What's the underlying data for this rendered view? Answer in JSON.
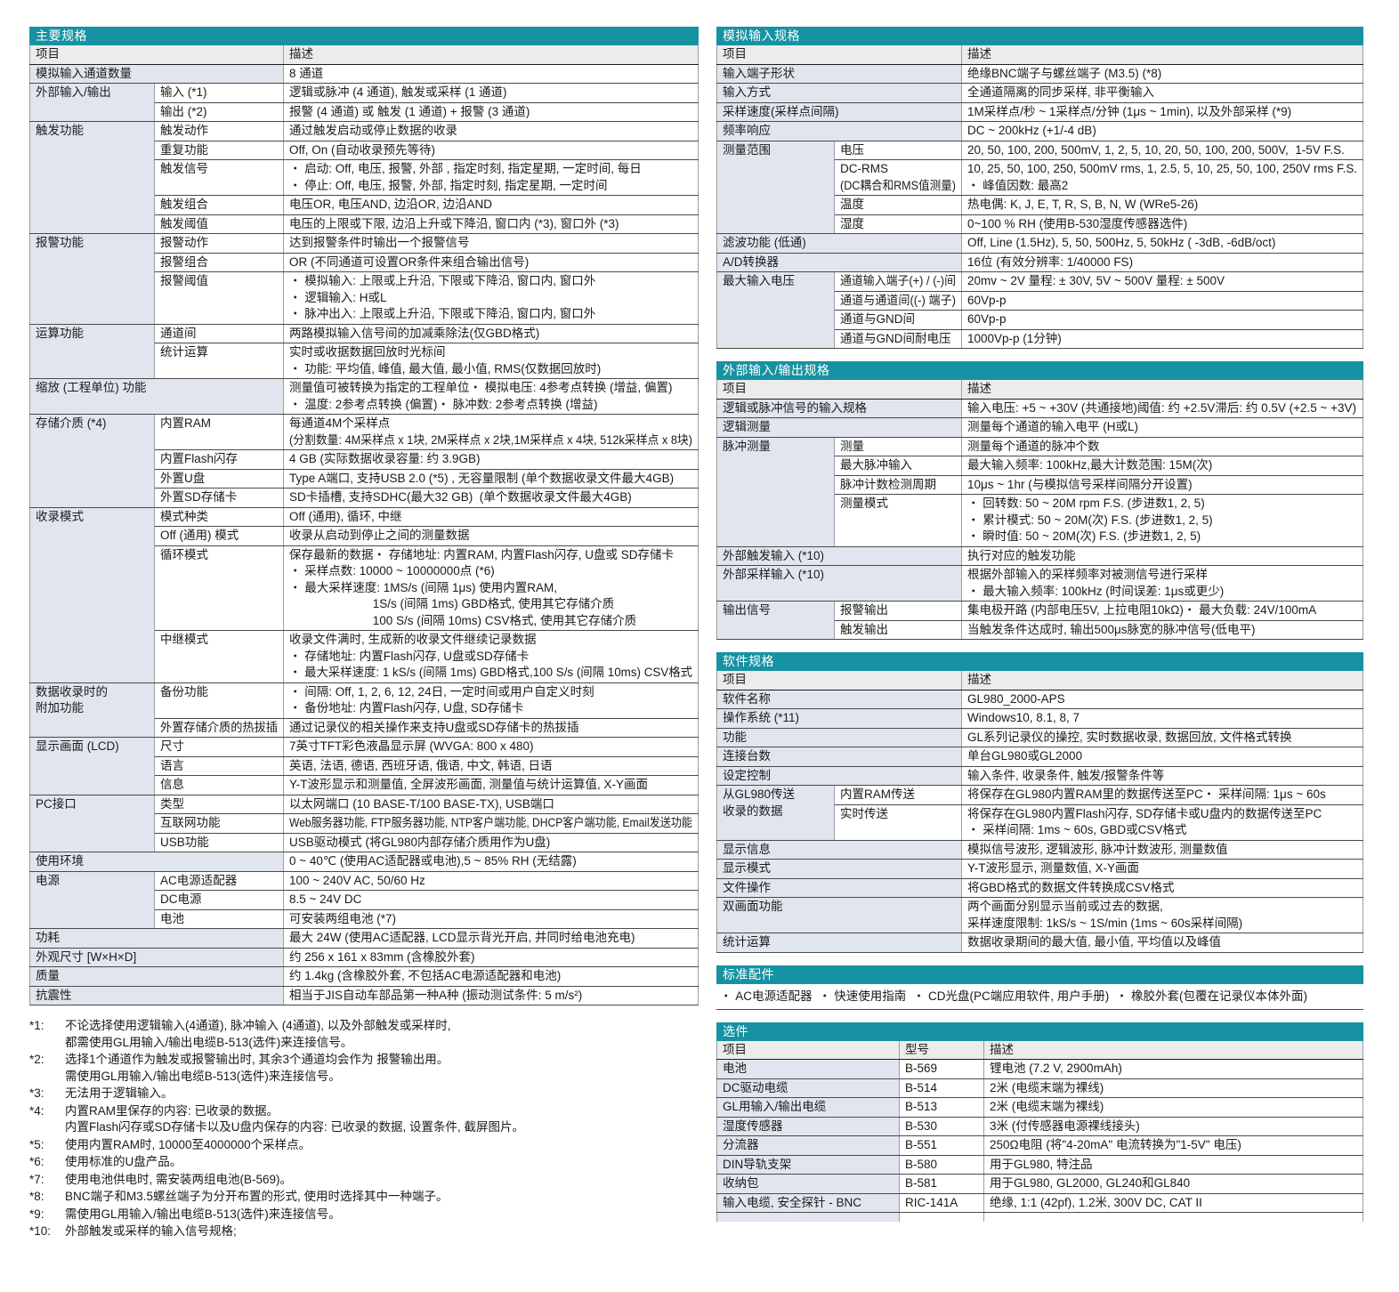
{
  "colors": {
    "header_bar": "#1792a3",
    "header_bar_text": "#ffffff",
    "col_header_bg": "#ececec",
    "item_bg": "#e1e6ee",
    "border_dark": "#4a4a4a",
    "border_light": "#97a0aa"
  },
  "left": {
    "main_table": {
      "name": "main-specs",
      "title": "主要规格",
      "columns": [
        "项目",
        "描述"
      ],
      "widths": [
        140,
        145,
        null
      ],
      "rows": [
        {
          "item": "模拟输入通道数量",
          "desc": "8 通道"
        },
        {
          "item": "外部输入/输出",
          "rowspan": 2,
          "sub": "输入 (*1)",
          "desc": "逻辑或脉冲 (4 通道), 触发或采样 (1 通道)"
        },
        {
          "sub": "输出 (*2)",
          "desc": "报警 (4 通道) 或 触发 (1 通道) + 报警 (3 通道)"
        },
        {
          "item": "触发功能",
          "rowspan": 5,
          "sub": "触发动作",
          "desc": "通过触发启动或停止数据的收录"
        },
        {
          "sub": "重复功能",
          "desc": "Off, On (自动收录预先等待)"
        },
        {
          "sub": "触发信号",
          "desc": [
            "・ 启动: Off, 电压, 报警, 外部 , 指定时刻, 指定星期, 一定时间, 每日",
            "・ 停止: Off, 电压, 报警, 外部, 指定时刻, 指定星期, 一定时间"
          ]
        },
        {
          "sub": "触发组合",
          "desc": "电压OR, 电压AND, 边沿OR, 边沿AND"
        },
        {
          "sub": "触发阈值",
          "desc": "电压的上限或下限, 边沿上升或下降沿, 窗口内 (*3), 窗口外 (*3)"
        },
        {
          "item": "报警功能",
          "rowspan": 3,
          "sub": "报警动作",
          "desc": "达到报警条件时输出一个报警信号"
        },
        {
          "sub": "报警组合",
          "desc": "OR (不同通道可设置OR条件来组合输出信号)"
        },
        {
          "sub": "报警阈值",
          "desc": [
            "・ 模拟输入: 上限或上升沿, 下限或下降沿, 窗口内, 窗口外",
            "・ 逻辑输入: H或L",
            "・ 脉冲出入: 上限或上升沿, 下限或下降沿, 窗口内, 窗口外"
          ]
        },
        {
          "item": "运算功能",
          "rowspan": 2,
          "sub": "通道间",
          "desc": "两路模拟输入信号间的加减乘除法(仅GBD格式)"
        },
        {
          "sub": "统计运算",
          "desc": [
            "实时或收据数据回放时光标间",
            "・ 功能: 平均值, 峰值, 最大值, 最小值, RMS(仅数据回放时)"
          ]
        },
        {
          "item": "缩放 (工程单位) 功能",
          "desc": [
            "测量值可被转换为指定的工程单位",
            "・ 模拟电压: 4参考点转换 (增益, 偏置)",
            "・ 温度: 2参考点转换 (偏置)",
            "・ 脉冲数: 2参考点转换 (增益)"
          ]
        },
        {
          "item": "存储介质 (*4)",
          "rowspan": 4,
          "sub": "内置RAM",
          "desc": [
            "每通道4M个采样点",
            "(分割数量: 4M采样点 x 1块, 2M采样点 x 2块,1M采样点 x 4块, 512k采样点 x 8块)"
          ]
        },
        {
          "sub": "内置Flash闪存",
          "desc": "4 GB (实际数据收录容量: 约 3.9GB)"
        },
        {
          "sub": "外置U盘",
          "desc": "Type A端口, 支持USB 2.0 (*5) , 无容量限制 (单个数据收录文件最大4GB)"
        },
        {
          "sub": "外置SD存储卡",
          "desc": "SD卡插槽, 支持SDHC(最大32 GB)  (单个数据收录文件最大4GB)"
        },
        {
          "item": "收录模式",
          "rowspan": 4,
          "sub": "模式种类",
          "desc": "Off (通用), 循环, 中继"
        },
        {
          "sub": "Off (通用) 模式",
          "desc": "收录从启动到停止之间的测量数据"
        },
        {
          "sub": "循环模式",
          "desc": [
            "保存最新的数据",
            "・ 存储地址: 内置RAM, 内置Flash闪存, U盘或 SD存储卡",
            "・ 采样点数: 10000 ~ 10000000点 (*6)",
            "・ 最大采样速度: 1MS/s (间隔 1μs) 使用内置RAM,",
            "                         1S/s (间隔 1ms) GBD格式, 使用其它存储介质",
            "                         100 S/s (间隔 10ms) CSV格式, 使用其它存储介质"
          ]
        },
        {
          "sub": "中继模式",
          "desc": [
            "收录文件满时, 生成新的收录文件继续记录数据",
            "・ 存储地址: 内置Flash闪存, U盘或SD存储卡",
            "・ 最大采样速度: 1 kS/s (间隔 1ms) GBD格式,100 S/s (间隔 10ms) CSV格式"
          ]
        },
        {
          "item": [
            "数据收录时的",
            "附加功能"
          ],
          "rowspan": 2,
          "sub": "备份功能",
          "desc": [
            "・ 间隔: Off, 1, 2, 6, 12, 24日, 一定时间或用户自定义时刻",
            "・ 备份地址: 内置Flash闪存, U盘, SD存储卡"
          ]
        },
        {
          "sub": "外置存储介质的热拔插",
          "desc": "通过记录仪的相关操作来支持U盘或SD存储卡的热拔插"
        },
        {
          "item": "显示画面 (LCD)",
          "rowspan": 3,
          "sub": "尺寸",
          "desc": "7英寸TFT彩色液晶显示屏 (WVGA: 800 x 480)"
        },
        {
          "sub": "语言",
          "desc": "英语, 法语, 德语, 西班牙语, 俄语, 中文, 韩语, 日语"
        },
        {
          "sub": "信息",
          "desc": "Y-T波形显示和测量值, 全屏波形画面, 测量值与统计运算值, X-Y画面"
        },
        {
          "item": "PC接口",
          "rowspan": 3,
          "sub": "类型",
          "desc": "以太网端口 (10 BASE-T/100 BASE-TX), USB端口"
        },
        {
          "sub": "互联网功能",
          "desc": "Web服务器功能, FTP服务器功能, NTP客户端功能, DHCP客户端功能, Email发送功能"
        },
        {
          "sub": "USB功能",
          "desc": "USB驱动模式 (将GL980内部存储介质用作为U盘)"
        },
        {
          "item": "使用环境",
          "desc": "0 ~ 40℃ (使用AC适配器或电池),5 ~ 85% RH (无结露)"
        },
        {
          "item": "电源",
          "rowspan": 3,
          "sub": "AC电源适配器",
          "desc": "100 ~ 240V AC, 50/60 Hz"
        },
        {
          "sub": "DC电源",
          "desc": "8.5 ~ 24V DC"
        },
        {
          "sub": "电池",
          "desc": "可安装两组电池 (*7)"
        },
        {
          "item": "功耗",
          "desc": "最大 24W (使用AC适配器, LCD显示背光开启, 并同时给电池充电)"
        },
        {
          "item": "外观尺寸 [W×H×D]",
          "desc": "约 256 x 161 x 83mm (含橡胶外套)"
        },
        {
          "item": "质量",
          "desc": "约 1.4kg (含橡胶外套, 不包括AC电源适配器和电池)"
        },
        {
          "item": "抗震性",
          "desc": "相当于JIS自动车部品第一种A种 (振动测试条件: 5 m/s²)"
        }
      ]
    },
    "footnotes": [
      {
        "label": "*1:",
        "lines": [
          "不论选择使用逻辑输入(4通道), 脉冲输入 (4通道), 以及外部触发或采样时,",
          "都需使用GL用输入/输出电缆B-513(选件)来连接信号。"
        ]
      },
      {
        "label": "*2:",
        "lines": [
          "选择1个通道作为触发或报警输出时, 其余3个通道均会作为 报警输出用。",
          "需使用GL用输入/输出电缆B-513(选件)来连接信号。"
        ]
      },
      {
        "label": "*3:",
        "lines": [
          "无法用于逻辑输入。"
        ]
      },
      {
        "label": "*4:",
        "lines": [
          "内置RAM里保存的内容: 已收录的数据。",
          "内置Flash闪存或SD存储卡以及U盘内保存的内容: 已收录的数据, 设置条件, 截屏图片。"
        ]
      },
      {
        "label": "*5:",
        "lines": [
          "使用内置RAM时, 10000至4000000个采样点。"
        ]
      },
      {
        "label": "*6:",
        "lines": [
          "使用标准的U盘产品。"
        ]
      },
      {
        "label": "*7:",
        "lines": [
          "使用电池供电时, 需安装两组电池(B-569)。"
        ]
      },
      {
        "label": "*8:",
        "lines": [
          "BNC端子和M3.5螺丝端子为分开布置的形式, 使用时选择其中一种端子。"
        ]
      },
      {
        "label": "*9:",
        "lines": [
          "需使用GL用输入/输出电缆B-513(选件)来连接信号。"
        ]
      },
      {
        "label": "*10:",
        "lines": [
          "外部触发或采样的输入信号规格;"
        ]
      }
    ]
  },
  "right": {
    "tables": [
      {
        "name": "analog-input-specs",
        "title": "模拟输入规格",
        "columns": [
          "项目",
          "描述"
        ],
        "widths": [
          132,
          143,
          null
        ],
        "rows": [
          {
            "item": "输入端子形状",
            "desc": "绝缘BNC端子与螺丝端子 (M3.5) (*8)"
          },
          {
            "item": "输入方式",
            "desc": "全通道隔离的同步采样, 非平衡输入"
          },
          {
            "item": "采样速度(采样点间隔)",
            "desc": "1M采样点/秒 ~ 1采样点/分钟 (1μs ~ 1min), 以及外部采样 (*9)"
          },
          {
            "item": "频率响应",
            "desc": "DC ~ 200kHz (+1/-4 dB)"
          },
          {
            "item": "测量范围",
            "rowspan": 4,
            "sub": "电压",
            "desc": "20, 50, 100, 200, 500mV, 1, 2, 5, 10, 20, 50, 100, 200, 500V,  1-5V F.S."
          },
          {
            "sub": [
              "DC-RMS",
              "(DC耦合和RMS值测量)"
            ],
            "desc": [
              "10, 25, 50, 100, 250, 500mV rms, 1, 2.5, 5, 10, 25, 50, 100, 250V rms F.S.",
              "・ 峰值因数: 最高2"
            ]
          },
          {
            "sub": "温度",
            "desc": "热电偶: K, J, E, T, R, S, B, N, W (WRe5-26)"
          },
          {
            "sub": "湿度",
            "desc": "0~100 % RH (使用B-530湿度传感器选件)"
          },
          {
            "item": "滤波功能 (低通)",
            "desc": "Off, Line (1.5Hz), 5, 50, 500Hz, 5, 50kHz ( -3dB, -6dB/oct)"
          },
          {
            "item": "A/D转换器",
            "desc": "16位 (有效分辨率: 1/40000 FS)"
          },
          {
            "item": "最大输入电压",
            "rowspan": 4,
            "sub": "通道输入端子(+) / (-)间",
            "desc": "20mv ~ 2V 量程: ± 30V, 5V ~ 500V 量程: ± 500V"
          },
          {
            "sub": "通道与通道间((-) 端子)",
            "desc": "60Vp-p"
          },
          {
            "sub": "通道与GND间",
            "desc": "60Vp-p"
          },
          {
            "sub": "通道与GND间耐电压",
            "desc": "1000Vp-p (1分钟)"
          }
        ]
      },
      {
        "name": "external-io-specs",
        "title": "外部输入/输出规格",
        "columns": [
          "项目",
          "描述"
        ],
        "widths": [
          132,
          143,
          null
        ],
        "rows": [
          {
            "item": "逻辑或脉冲信号的输入规格",
            "desc": [
              "输入电压: +5 ~ +30V (共通接地)",
              "阈值: 约 +2.5V",
              "滞后: 约 0.5V (+2.5 ~ +3V)"
            ]
          },
          {
            "item": "逻辑测量",
            "desc": "测量每个通道的输入电平 (H或L)"
          },
          {
            "item": "脉冲测量",
            "rowspan": 4,
            "sub": "测量",
            "desc": "测量每个通道的脉冲个数"
          },
          {
            "sub": "最大脉冲输入",
            "desc": [
              "最大输入频率: 100kHz,",
              "最大计数范围: 15M(次)"
            ]
          },
          {
            "sub": "脉冲计数检测周期",
            "desc": "10μs ~ 1hr (与模拟信号采样间隔分开设置)"
          },
          {
            "sub": "测量模式",
            "desc": [
              "・ 回转数: 50 ~ 20M rpm F.S. (步进数1, 2, 5)",
              "・ 累计模式: 50 ~ 20M(次) F.S. (步进数1, 2, 5)",
              "・ 瞬时值: 50 ~ 20M(次) F.S. (步进数1, 2, 5)"
            ]
          },
          {
            "item": "外部触发输入 (*10)",
            "desc": "执行对应的触发功能"
          },
          {
            "item": "外部采样输入 (*10)",
            "desc": [
              "根据外部输入的采样频率对被测信号进行采样",
              "・ 最大输入频率: 100kHz (时间误差: 1μs或更少)"
            ]
          },
          {
            "item": "输出信号",
            "rowspan": 2,
            "sub": "报警输出",
            "desc": [
              "集电极开路 (内部电压5V, 上拉电阻10kΩ)",
              "・ 最大负载: 24V/100mA"
            ]
          },
          {
            "sub": "触发输出",
            "desc": "当触发条件达成时, 输出500μs脉宽的脉冲信号(低电平)"
          }
        ]
      },
      {
        "name": "software-specs",
        "title": "软件规格",
        "columns": [
          "项目",
          "描述"
        ],
        "widths": [
          132,
          143,
          null
        ],
        "rows": [
          {
            "item": "软件名称",
            "desc": "GL980_2000-APS"
          },
          {
            "item": "操作系统 (*11)",
            "desc": "Windows10, 8.1, 8, 7"
          },
          {
            "item": "功能",
            "desc": "GL系列记录仪的操控, 实时数据收录, 数据回放, 文件格式转换"
          },
          {
            "item": "连接台数",
            "desc": "单台GL980或GL2000"
          },
          {
            "item": "设定控制",
            "desc": "输入条件, 收录条件, 触发/报警条件等"
          },
          {
            "item": [
              "从GL980传送",
              "收录的数据"
            ],
            "rowspan": 2,
            "sub": "内置RAM传送",
            "desc": [
              "将保存在GL980内置RAM里的数据传送至PC",
              "・ 采样间隔: 1μs ~ 60s"
            ]
          },
          {
            "sub": "实时传送",
            "desc": [
              "将保存在GL980内置Flash闪存, SD存储卡或U盘内的数据传送至PC",
              "・ 采样间隔: 1ms ~ 60s, GBD或CSV格式"
            ]
          },
          {
            "item": "显示信息",
            "desc": "模拟信号波形, 逻辑波形, 脉冲计数波形, 测量数值"
          },
          {
            "item": "显示模式",
            "desc": "Y-T波形显示, 测量数值, X-Y画面"
          },
          {
            "item": "文件操作",
            "desc": "将GBD格式的数据文件转换成CSV格式"
          },
          {
            "item": "双画面功能",
            "desc": [
              "两个画面分别显示当前或过去的数据,",
              "采样速度限制: 1kS/s ~ 1S/min (1ms ~ 60s采样间隔)"
            ]
          },
          {
            "item": "统计运算",
            "desc": "数据收录期间的最大值, 最小值, 平均值以及峰值"
          }
        ]
      }
    ],
    "accessories": {
      "title": "标准配件",
      "line": "・ AC电源适配器  ・ 快速使用指南  ・ CD光盘(PC端应用软件, 用户手册)  ・ 橡胶外套(包覆在记录仪本体外面)"
    },
    "options_table": {
      "name": "options",
      "title": "选件",
      "columns": [
        "项目",
        "型号",
        "描述"
      ],
      "widths": [
        205,
        95,
        null
      ],
      "partial_row": true,
      "rows": [
        {
          "item": "电池",
          "model": "B-569",
          "desc": "锂电池 (7.2 V, 2900mAh)"
        },
        {
          "item": "DC驱动电缆",
          "model": "B-514",
          "desc": "2米 (电缆末端为裸线)"
        },
        {
          "item": "GL用输入/输出电缆",
          "model": "B-513",
          "desc": "2米 (电缆末端为裸线)"
        },
        {
          "item": "湿度传感器",
          "model": "B-530",
          "desc": "3米 (付传感器电源裸线接头)"
        },
        {
          "item": "分流器",
          "model": "B-551",
          "desc": "250Ω电阻 (将\"4-20mA\" 电流转换为\"1-5V\" 电压)"
        },
        {
          "item": "DIN导轨支架",
          "model": "B-580",
          "desc": "用于GL980, 特注品"
        },
        {
          "item": "收纳包",
          "model": "B-581",
          "desc": "用于GL980, GL2000, GL240和GL840"
        },
        {
          "item": "输入电缆, 安全探针 - BNC",
          "model": "RIC-141A",
          "desc": "绝缘, 1:1 (42pf), 1.2米, 300V DC, CAT II"
        }
      ]
    }
  }
}
